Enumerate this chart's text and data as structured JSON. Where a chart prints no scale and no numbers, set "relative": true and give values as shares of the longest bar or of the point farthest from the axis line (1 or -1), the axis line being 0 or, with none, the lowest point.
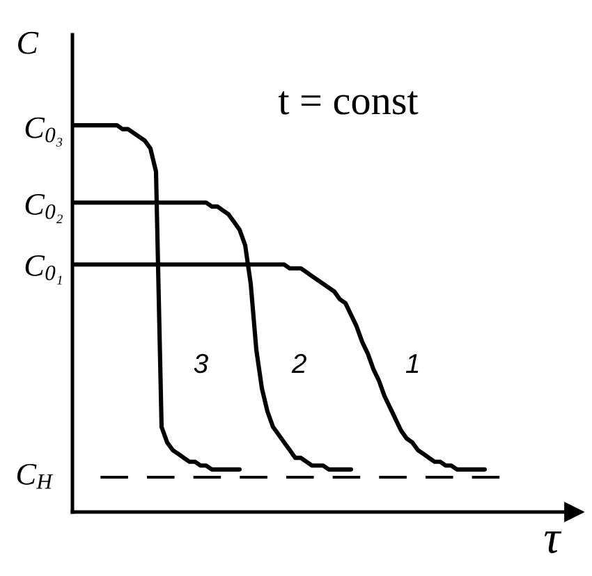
{
  "chart_data": {
    "type": "line",
    "relative": true,
    "xlabel": "τ",
    "ylabel": "C",
    "categories": [
      null,
      null,
      null,
      null,
      null,
      null,
      null,
      null,
      null,
      null,
      null,
      null,
      null,
      null,
      null,
      null,
      null,
      null,
      null,
      null,
      null,
      null,
      null,
      null,
      null,
      null,
      null,
      null,
      null,
      null,
      null,
      null,
      null,
      null,
      null,
      null,
      null,
      null,
      null,
      null,
      null,
      null,
      null,
      null,
      null,
      null,
      null,
      null,
      null,
      null,
      null,
      null,
      null,
      null,
      null,
      null,
      null,
      null,
      null,
      null,
      null,
      null,
      null,
      null,
      null,
      null,
      null,
      null,
      null,
      null,
      null,
      null,
      null,
      null,
      null,
      null,
      null,
      null,
      null,
      null,
      null,
      null,
      null,
      null,
      null,
      null,
      null,
      null,
      null,
      null,
      null
    ],
    "series": [
      {
        "name": "1",
        "color": "#000000",
        "values": [
          0.64,
          0.64,
          0.64,
          0.64,
          0.64,
          0.64,
          0.64,
          0.64,
          0.64,
          0.64,
          0.64,
          0.64,
          0.64,
          0.64,
          0.64,
          0.64,
          0.64,
          0.64,
          0.64,
          0.64,
          0.64,
          0.64,
          0.64,
          0.64,
          0.64,
          0.64,
          0.64,
          0.64,
          0.64,
          0.64,
          0.64,
          0.64,
          0.64,
          0.64,
          0.64,
          0.64,
          0.64,
          0.64,
          0.64,
          0.63,
          0.63,
          0.63,
          0.62,
          0.61,
          0.6,
          0.59,
          0.58,
          0.57,
          0.55,
          0.54,
          0.51,
          0.48,
          0.44,
          0.41,
          0.37,
          0.34,
          0.3,
          0.27,
          0.24,
          0.21,
          0.19,
          0.18,
          0.16,
          0.15,
          0.14,
          0.13,
          0.13,
          0.12,
          0.12,
          0.11,
          0.11,
          0.11,
          0.11,
          0.11,
          0.11,
          null,
          null,
          null,
          null,
          null,
          null,
          null,
          null,
          null,
          null,
          null,
          null,
          null,
          null,
          null,
          null
        ]
      },
      {
        "name": "2",
        "color": "#000000",
        "values": [
          0.8,
          0.8,
          0.8,
          0.8,
          0.8,
          0.8,
          0.8,
          0.8,
          0.8,
          0.8,
          0.8,
          0.8,
          0.8,
          0.8,
          0.8,
          0.8,
          0.8,
          0.8,
          0.8,
          0.8,
          0.8,
          0.8,
          0.8,
          0.8,
          0.8,
          0.79,
          0.79,
          0.78,
          0.77,
          0.75,
          0.73,
          0.69,
          0.59,
          0.42,
          0.32,
          0.26,
          0.22,
          0.2,
          0.18,
          0.16,
          0.14,
          0.14,
          0.13,
          0.12,
          0.12,
          0.12,
          0.11,
          0.11,
          0.11,
          0.11,
          0.11,
          null,
          null,
          null,
          null,
          null,
          null,
          null,
          null,
          null,
          null,
          null,
          null,
          null,
          null,
          null,
          null,
          null,
          null,
          null,
          null,
          null,
          null,
          null,
          null,
          null,
          null,
          null,
          null,
          null,
          null,
          null,
          null,
          null,
          null,
          null,
          null,
          null,
          null,
          null,
          null
        ]
      },
      {
        "name": "3",
        "color": "#000000",
        "values": [
          1.0,
          1.0,
          1.0,
          1.0,
          1.0,
          1.0,
          1.0,
          1.0,
          1.0,
          0.99,
          0.99,
          0.98,
          0.97,
          0.96,
          0.94,
          0.88,
          0.22,
          0.18,
          0.16,
          0.15,
          0.14,
          0.13,
          0.13,
          0.12,
          0.12,
          0.11,
          0.11,
          0.11,
          0.11,
          0.11,
          0.11,
          null,
          null,
          null,
          null,
          null,
          null,
          null,
          null,
          null,
          null,
          null,
          null,
          null,
          null,
          null,
          null,
          null,
          null,
          null,
          null,
          null,
          null,
          null,
          null,
          null,
          null,
          null,
          null,
          null,
          null,
          null,
          null,
          null,
          null,
          null,
          null,
          null,
          null,
          null,
          null,
          null,
          null,
          null,
          null,
          null,
          null,
          null,
          null,
          null,
          null,
          null,
          null,
          null,
          null,
          null,
          null,
          null,
          null,
          null,
          null
        ]
      }
    ],
    "ref_lines": [
      {
        "axis": "y",
        "value": 0.09,
        "label": "C$_{H}$",
        "color": "#000000",
        "line_style": "dashed"
      }
    ],
    "annotations": [
      "t = const",
      "C$_{0₃}$",
      "C$_{0₂}$",
      "C$_{0₁}$"
    ]
  }
}
